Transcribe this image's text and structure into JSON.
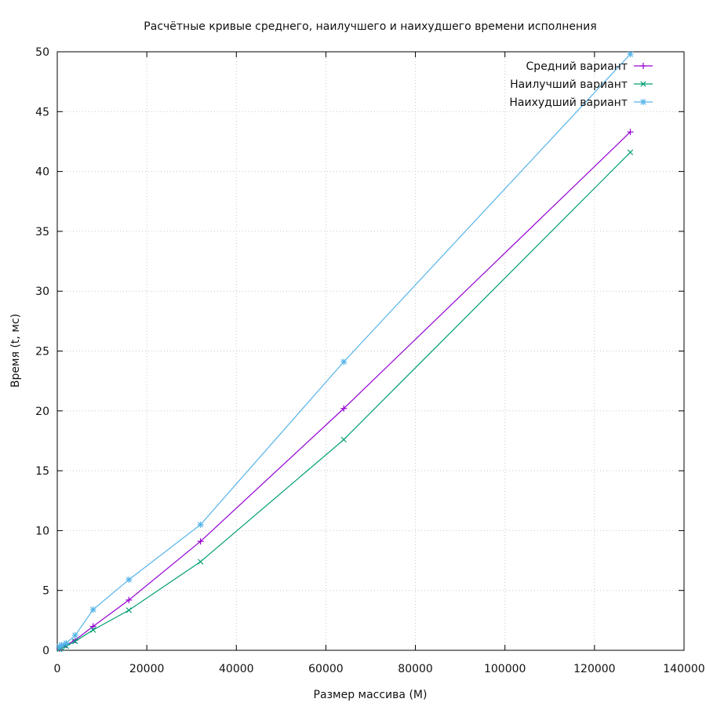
{
  "chart_data": {
    "type": "line",
    "title": "Расчётные кривые среднего, наилучшего и наихудшего времени исполнения",
    "xlabel": "Размер массива (M)",
    "ylabel": "Время (t, мс)",
    "xlim": [
      0,
      140000
    ],
    "ylim": [
      0,
      50
    ],
    "x_ticks": [
      0,
      20000,
      40000,
      60000,
      80000,
      100000,
      120000,
      140000
    ],
    "y_ticks": [
      0,
      5,
      10,
      15,
      20,
      25,
      30,
      35,
      40,
      45,
      50
    ],
    "grid": true,
    "legend_position": "top-right",
    "x": [
      500,
      1000,
      2000,
      4000,
      8000,
      16000,
      32000,
      64000,
      128000
    ],
    "series": [
      {
        "name": "Средний вариант",
        "color": "#9400d3",
        "marker": "plus",
        "values": [
          0.13,
          0.25,
          0.45,
          0.85,
          2.0,
          4.2,
          9.1,
          20.2,
          43.3
        ]
      },
      {
        "name": "Наилучший вариант",
        "color": "#009e73",
        "marker": "cross",
        "values": [
          0.1,
          0.2,
          0.35,
          0.75,
          1.7,
          3.35,
          7.4,
          17.6,
          41.6
        ]
      },
      {
        "name": "Наихудший вариант",
        "color": "#56b4e9",
        "marker": "asterisk",
        "values": [
          0.3,
          0.45,
          0.6,
          1.25,
          3.4,
          5.9,
          10.5,
          24.1,
          49.8
        ]
      }
    ]
  }
}
